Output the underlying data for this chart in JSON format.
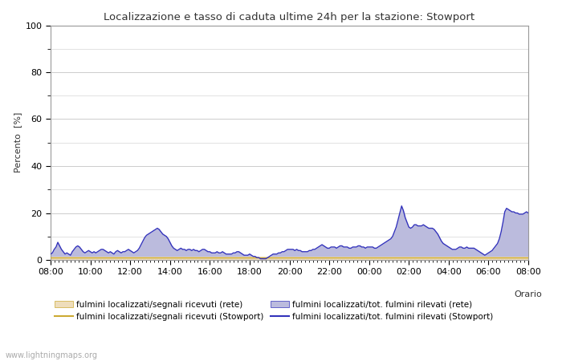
{
  "title": "Localizzazione e tasso di caduta ultime 24h per la stazione: Stowport",
  "xlabel": "Orario",
  "ylabel": "Percento  [%]",
  "ylim": [
    0,
    100
  ],
  "yticks": [
    0,
    20,
    40,
    60,
    80,
    100
  ],
  "yticks_minor": [
    10,
    30,
    50,
    70,
    90
  ],
  "background_color": "#ffffff",
  "plot_bg_color": "#ffffff",
  "grid_color": "#cccccc",
  "watermark": "www.lightningmaps.org",
  "x_labels": [
    "08:00",
    "10:00",
    "12:00",
    "14:00",
    "16:00",
    "18:00",
    "20:00",
    "22:00",
    "00:00",
    "02:00",
    "04:00",
    "06:00",
    "08:00"
  ],
  "line_stowport_color": "#3333bb",
  "line_rete_color": "#ccaa33",
  "fill_stowport_color": "#bbbbdd",
  "fill_rete_color": "#eeddbb",
  "legend_labels": [
    "fulmini localizzati/segnali ricevuti (rete)",
    "fulmini localizzati/segnali ricevuti (Stowport)",
    "fulmini localizzati/tot. fulmini rilevati (rete)",
    "fulmini localizzati/tot. fulmini rilevati (Stowport)"
  ],
  "stowport_values": [
    2.5,
    3.0,
    4.5,
    5.5,
    7.5,
    6.0,
    4.5,
    3.5,
    2.5,
    3.0,
    2.5,
    2.0,
    3.5,
    4.5,
    5.5,
    6.0,
    5.5,
    4.5,
    3.5,
    3.0,
    3.5,
    4.0,
    3.5,
    3.0,
    3.5,
    3.0,
    3.5,
    4.0,
    4.5,
    4.5,
    4.0,
    3.5,
    3.0,
    3.5,
    3.0,
    2.5,
    3.5,
    4.0,
    3.5,
    3.0,
    3.5,
    3.5,
    4.0,
    4.5,
    4.0,
    3.5,
    3.0,
    3.5,
    4.0,
    5.0,
    6.5,
    8.0,
    9.5,
    10.5,
    11.0,
    11.5,
    12.0,
    12.5,
    13.0,
    13.5,
    13.0,
    12.0,
    11.0,
    10.5,
    10.0,
    9.0,
    7.5,
    6.0,
    5.0,
    4.5,
    4.0,
    4.5,
    5.0,
    4.5,
    4.5,
    4.0,
    4.5,
    4.5,
    4.0,
    4.5,
    4.0,
    4.0,
    3.5,
    4.0,
    4.5,
    4.5,
    4.0,
    3.5,
    3.5,
    3.0,
    3.0,
    3.0,
    3.5,
    3.0,
    3.0,
    3.5,
    3.0,
    2.5,
    2.5,
    2.5,
    2.5,
    3.0,
    3.0,
    3.5,
    3.5,
    3.0,
    2.5,
    2.0,
    2.0,
    2.0,
    2.5,
    2.0,
    1.5,
    1.5,
    1.0,
    1.0,
    0.5,
    0.5,
    0.5,
    0.5,
    1.0,
    1.5,
    2.0,
    2.5,
    2.5,
    2.5,
    3.0,
    3.0,
    3.5,
    3.5,
    4.0,
    4.5,
    4.5,
    4.5,
    4.5,
    4.0,
    4.5,
    4.0,
    4.0,
    3.5,
    3.5,
    3.5,
    3.5,
    4.0,
    4.0,
    4.5,
    4.5,
    5.0,
    5.5,
    6.0,
    6.5,
    6.0,
    5.5,
    5.0,
    5.0,
    5.5,
    5.5,
    5.5,
    5.0,
    5.5,
    6.0,
    6.0,
    5.5,
    5.5,
    5.5,
    5.0,
    5.0,
    5.5,
    5.5,
    5.5,
    6.0,
    6.0,
    5.5,
    5.5,
    5.0,
    5.5,
    5.5,
    5.5,
    5.5,
    5.0,
    5.0,
    5.5,
    6.0,
    6.5,
    7.0,
    7.5,
    8.0,
    8.5,
    9.0,
    10.0,
    12.0,
    14.0,
    17.0,
    20.0,
    23.0,
    21.0,
    18.0,
    16.0,
    14.0,
    13.5,
    14.0,
    15.0,
    15.0,
    14.5,
    14.5,
    14.5,
    15.0,
    14.5,
    14.0,
    13.5,
    13.5,
    13.5,
    13.0,
    12.0,
    11.0,
    9.5,
    8.0,
    7.0,
    6.5,
    6.0,
    5.5,
    5.0,
    4.5,
    4.5,
    4.5,
    5.0,
    5.5,
    5.5,
    5.0,
    5.0,
    5.5,
    5.0,
    5.0,
    5.0,
    5.0,
    4.5,
    4.0,
    3.5,
    3.0,
    2.5,
    2.0,
    2.5,
    3.0,
    3.5,
    4.0,
    5.0,
    6.0,
    7.0,
    9.0,
    12.0,
    16.0,
    20.5,
    22.0,
    21.5,
    21.0,
    20.5,
    20.5,
    20.0,
    20.0,
    19.5,
    19.5,
    19.5,
    20.0,
    20.5,
    20.0
  ],
  "rete_fill_value": 1.5,
  "rete_line_value": 1.0
}
